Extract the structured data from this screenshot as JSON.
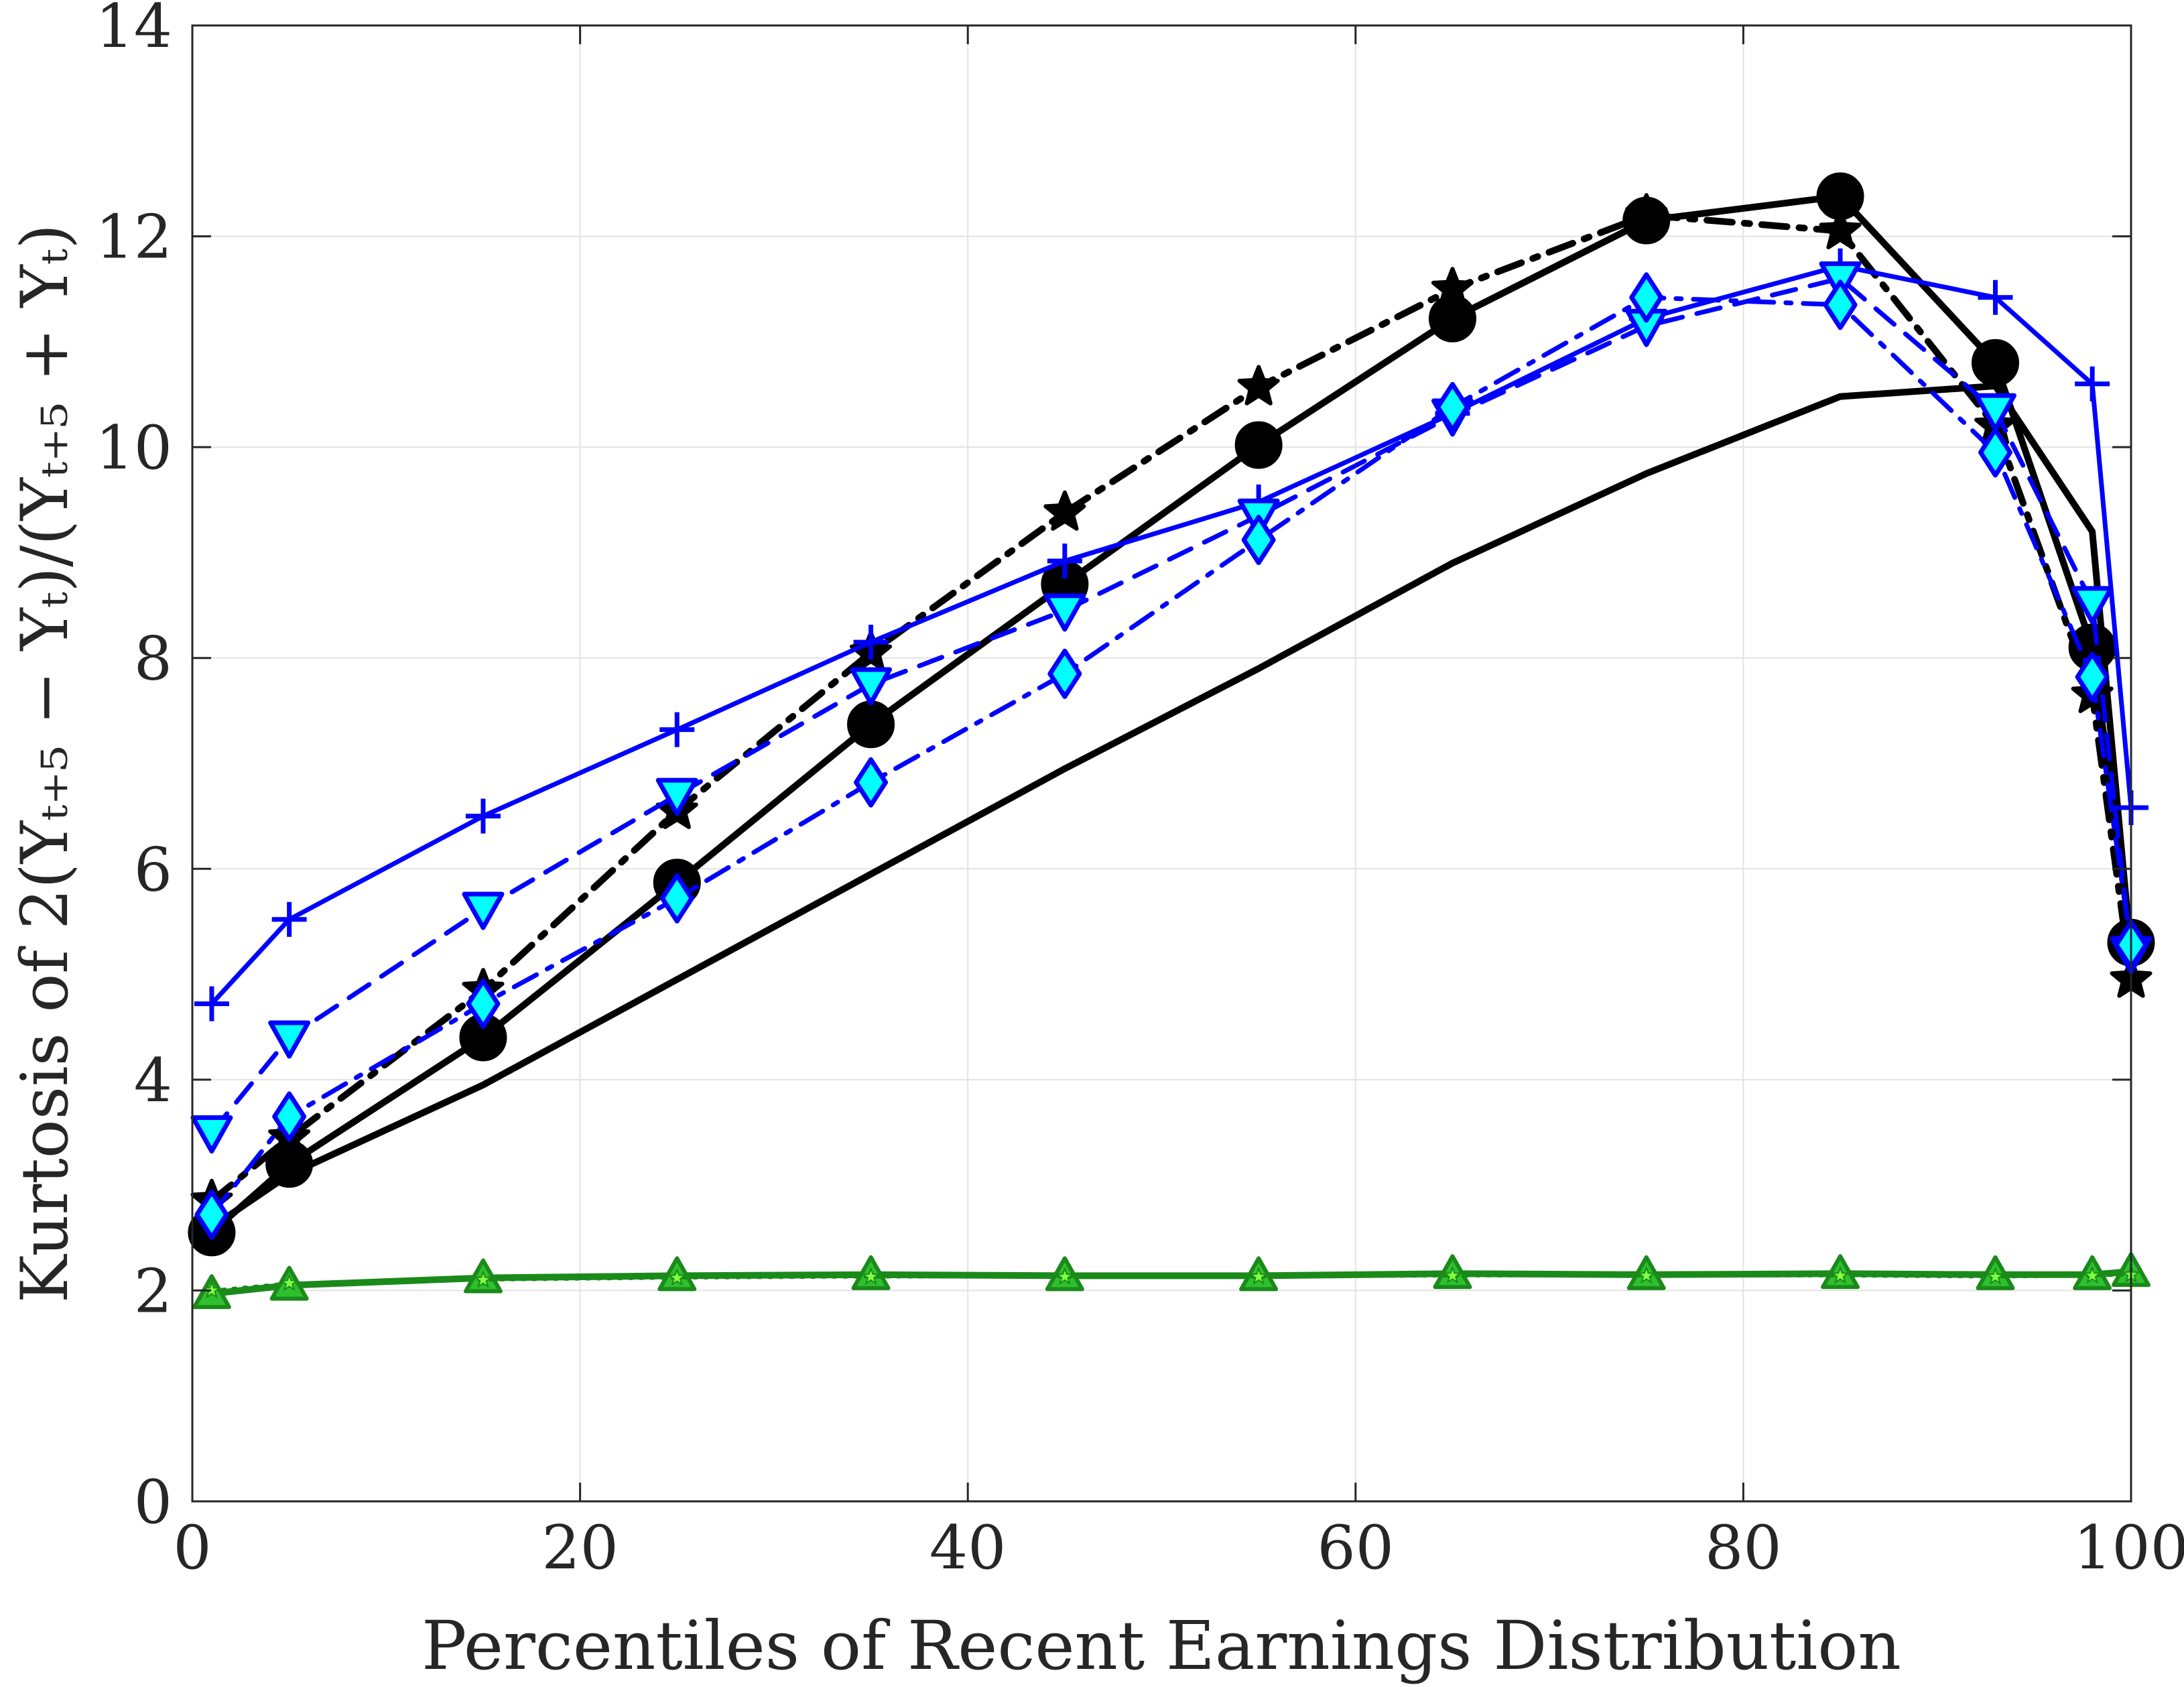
{
  "chart_data": {
    "type": "line",
    "xlabel": "Percentiles of Recent Earnings Distribution",
    "ylabel": "Kurtosis of 2(Yₜ₊₅ − Yₜ)/(Yₜ₊₅ + Yₜ)",
    "xlim": [
      0,
      100
    ],
    "ylim": [
      0,
      14
    ],
    "xticks": [
      "0",
      "20",
      "40",
      "60",
      "80",
      "100"
    ],
    "yticks": [
      "0",
      "2",
      "4",
      "6",
      "8",
      "10",
      "12",
      "14"
    ],
    "grid": true,
    "legend": "none",
    "x": [
      1,
      5,
      15,
      25,
      35,
      45,
      55,
      65,
      75,
      85,
      93,
      98,
      100
    ],
    "series": [
      {
        "style": "black-solid-plain",
        "color": "#000000",
        "marker": "none",
        "dash": "solid",
        "values": [
          2.6,
          3.1,
          3.95,
          4.95,
          5.95,
          6.95,
          7.9,
          8.9,
          9.75,
          10.48,
          10.58,
          9.2,
          5.2
        ]
      },
      {
        "style": "black-solid-circle",
        "color": "#000000",
        "marker": "circle",
        "dash": "solid",
        "values": [
          2.55,
          3.2,
          4.4,
          5.87,
          7.37,
          8.7,
          10.02,
          11.22,
          12.15,
          12.38,
          10.8,
          8.1,
          5.3
        ]
      },
      {
        "style": "black-dashdot-star",
        "color": "#000000",
        "marker": "star",
        "dash": "dashdot",
        "values": [
          2.85,
          3.45,
          4.85,
          6.55,
          8.05,
          9.38,
          10.57,
          11.5,
          12.2,
          12.05,
          10.2,
          7.65,
          4.95
        ]
      },
      {
        "style": "blue-solid-plus",
        "color": "#0000ff",
        "marker": "plus",
        "dash": "solid",
        "values": [
          4.72,
          5.52,
          6.5,
          7.32,
          8.15,
          8.92,
          9.48,
          10.32,
          11.22,
          11.72,
          11.42,
          10.6,
          6.58
        ]
      },
      {
        "style": "blue-dashed-triangle-down",
        "color": "#0000ff",
        "marker": "triangle-down",
        "dash": "dashed",
        "values": [
          3.5,
          4.4,
          5.62,
          6.7,
          7.75,
          8.45,
          9.35,
          10.3,
          11.15,
          11.6,
          10.35,
          8.52,
          5.2
        ]
      },
      {
        "style": "blue-dashdot-diamond",
        "color": "#0000ff",
        "marker": "diamond",
        "dash": "dashdot",
        "values": [
          2.72,
          3.65,
          4.72,
          5.72,
          6.82,
          7.85,
          9.12,
          10.38,
          11.42,
          11.35,
          9.95,
          7.82,
          5.28
        ]
      },
      {
        "style": "green-solid-triangle",
        "color": "#1a8a1a",
        "marker": "triangle",
        "dash": "solid",
        "values": [
          1.97,
          2.05,
          2.12,
          2.14,
          2.15,
          2.14,
          2.14,
          2.16,
          2.15,
          2.16,
          2.15,
          2.15,
          2.18
        ]
      },
      {
        "style": "green-dotted-star",
        "color": "#1a8a1a",
        "marker": "star",
        "dash": "dotted",
        "values": [
          2.0,
          2.07,
          2.1,
          2.12,
          2.13,
          2.13,
          2.13,
          2.14,
          2.14,
          2.14,
          2.13,
          2.14,
          2.15
        ]
      }
    ]
  }
}
